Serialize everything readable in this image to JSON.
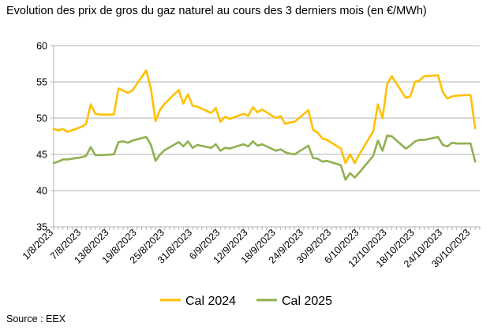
{
  "title": "Evolution des prix de gros du gaz naturel au cours des 3 derniers mois (en €/MWh)",
  "source": "Source : EEX",
  "chart_data": {
    "type": "line",
    "title": "Evolution des prix de gros du gaz naturel au cours des 3 derniers mois (en €/MWh)",
    "xlabel": "",
    "ylabel": "",
    "ylim": [
      35,
      60
    ],
    "yticks": [
      35,
      40,
      45,
      50,
      55,
      60
    ],
    "grid": "horizontal",
    "legend": "bottom",
    "x_tick_labels": [
      "1/8/2023",
      "7/8/2023",
      "13/8/2023",
      "19/8/2023",
      "25/8/2023",
      "31/8/2023",
      "6/9/2023",
      "12/9/2023",
      "18/9/2023",
      "24/9/2023",
      "30/9/2023",
      "6/10/2023",
      "12/10/2023",
      "18/10/2023",
      "24/10/2023",
      "30/10/2023"
    ],
    "x_tick_dates": [
      "2023-08-01",
      "2023-08-07",
      "2023-08-13",
      "2023-08-19",
      "2023-08-25",
      "2023-08-31",
      "2023-09-06",
      "2023-09-12",
      "2023-09-18",
      "2023-09-24",
      "2023-09-30",
      "2023-10-06",
      "2023-10-12",
      "2023-10-18",
      "2023-10-24",
      "2023-10-30"
    ],
    "x": [
      "2023-08-01",
      "2023-08-02",
      "2023-08-03",
      "2023-08-04",
      "2023-08-07",
      "2023-08-08",
      "2023-08-09",
      "2023-08-10",
      "2023-08-11",
      "2023-08-14",
      "2023-08-15",
      "2023-08-16",
      "2023-08-17",
      "2023-08-18",
      "2023-08-21",
      "2023-08-22",
      "2023-08-23",
      "2023-08-24",
      "2023-08-25",
      "2023-08-28",
      "2023-08-29",
      "2023-08-30",
      "2023-08-31",
      "2023-09-01",
      "2023-09-04",
      "2023-09-05",
      "2023-09-06",
      "2023-09-07",
      "2023-09-08",
      "2023-09-11",
      "2023-09-12",
      "2023-09-13",
      "2023-09-14",
      "2023-09-15",
      "2023-09-18",
      "2023-09-19",
      "2023-09-20",
      "2023-09-21",
      "2023-09-22",
      "2023-09-25",
      "2023-09-26",
      "2023-09-27",
      "2023-09-28",
      "2023-09-29",
      "2023-10-02",
      "2023-10-03",
      "2023-10-04",
      "2023-10-05",
      "2023-10-06",
      "2023-10-09",
      "2023-10-10",
      "2023-10-11",
      "2023-10-12",
      "2023-10-13",
      "2023-10-16",
      "2023-10-17",
      "2023-10-18",
      "2023-10-19",
      "2023-10-20",
      "2023-10-23",
      "2023-10-24",
      "2023-10-25",
      "2023-10-26",
      "2023-10-27",
      "2023-10-30",
      "2023-10-31"
    ],
    "series": [
      {
        "name": "Cal 2024",
        "color": "#FFC000",
        "values": [
          48.5,
          48.3,
          48.5,
          48.1,
          48.8,
          49.2,
          51.9,
          50.6,
          50.5,
          50.5,
          54.1,
          53.8,
          53.5,
          53.8,
          56.6,
          54.0,
          49.6,
          51.2,
          52.0,
          53.9,
          52.0,
          53.3,
          51.7,
          51.6,
          50.7,
          51.4,
          49.5,
          50.2,
          49.9,
          50.6,
          50.3,
          51.5,
          50.8,
          51.2,
          50.0,
          50.3,
          49.2,
          49.4,
          49.5,
          51.1,
          48.4,
          48.0,
          47.2,
          47.0,
          45.8,
          43.8,
          45.0,
          43.8,
          45.0,
          48.2,
          51.9,
          50.0,
          54.7,
          55.8,
          52.8,
          53.0,
          55.0,
          55.2,
          55.8,
          55.9,
          53.6,
          52.7,
          53.0,
          53.1,
          53.2,
          48.6
        ]
      },
      {
        "name": "Cal 2025",
        "color": "#8FB150",
        "values": [
          43.8,
          44.0,
          44.3,
          44.3,
          44.6,
          44.8,
          46.0,
          44.9,
          44.9,
          45.0,
          46.7,
          46.8,
          46.6,
          46.9,
          47.4,
          46.3,
          44.1,
          45.0,
          45.6,
          46.7,
          46.1,
          46.8,
          45.9,
          46.3,
          45.9,
          46.4,
          45.5,
          45.9,
          45.8,
          46.4,
          46.1,
          46.8,
          46.2,
          46.4,
          45.5,
          45.7,
          45.3,
          45.1,
          45.0,
          46.2,
          44.5,
          44.4,
          44.0,
          44.1,
          43.5,
          41.5,
          42.4,
          41.8,
          42.5,
          44.8,
          46.9,
          45.5,
          47.6,
          47.5,
          45.8,
          46.2,
          46.8,
          47.0,
          47.0,
          47.4,
          46.3,
          46.1,
          46.6,
          46.5,
          46.5,
          44.0
        ]
      }
    ]
  }
}
